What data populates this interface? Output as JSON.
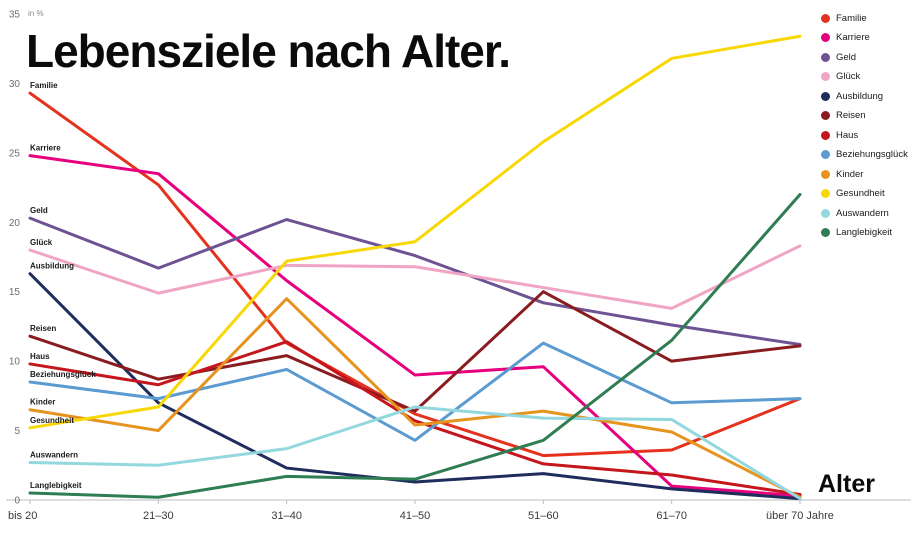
{
  "title": "Lebensziele nach Alter.",
  "chart_data": {
    "type": "line",
    "title": "Lebensziele nach Alter.",
    "xlabel": "Alter",
    "ylabel": "in %",
    "ylim": [
      0,
      35
    ],
    "yticks": [
      0,
      5,
      10,
      15,
      20,
      25,
      30,
      35
    ],
    "grid": false,
    "legend_position": "top-right",
    "categories": [
      "bis 20",
      "21–30",
      "31–40",
      "41–50",
      "51–60",
      "61–70",
      "über 70 Jahre"
    ],
    "series": [
      {
        "name": "Familie",
        "color": "#e5321e",
        "values": [
          29.3,
          22.7,
          11.3,
          6.2,
          3.2,
          3.6,
          7.3
        ]
      },
      {
        "name": "Karriere",
        "color": "#e6007e",
        "values": [
          24.8,
          23.5,
          15.8,
          9.0,
          9.6,
          1.0,
          0.3
        ]
      },
      {
        "name": "Geld",
        "color": "#6e5394",
        "values": [
          20.3,
          16.7,
          20.2,
          17.6,
          14.2,
          12.6,
          11.2
        ]
      },
      {
        "name": "Glück",
        "color": "#f1a5c5",
        "values": [
          18.0,
          14.9,
          16.9,
          16.8,
          15.3,
          13.8,
          18.3
        ]
      },
      {
        "name": "Ausbildung",
        "color": "#1e2d5c",
        "values": [
          16.3,
          7.0,
          2.3,
          1.3,
          1.9,
          0.8,
          0.1
        ]
      },
      {
        "name": "Reisen",
        "color": "#8a1c20",
        "values": [
          11.8,
          8.7,
          10.4,
          6.4,
          15.0,
          10.0,
          11.1
        ]
      },
      {
        "name": "Haus",
        "color": "#c4161c",
        "values": [
          9.8,
          8.3,
          11.4,
          5.7,
          2.6,
          1.8,
          0.4
        ]
      },
      {
        "name": "Beziehungsglück",
        "color": "#5b9bd1",
        "values": [
          8.5,
          7.3,
          9.4,
          4.3,
          11.3,
          7.0,
          7.3
        ]
      },
      {
        "name": "Kinder",
        "color": "#e6941e",
        "values": [
          6.5,
          5.0,
          14.5,
          5.4,
          6.4,
          4.9,
          0.2
        ]
      },
      {
        "name": "Gesundheit",
        "color": "#f8d804",
        "values": [
          5.2,
          6.7,
          17.2,
          18.6,
          25.8,
          31.8,
          33.4
        ]
      },
      {
        "name": "Auswandern",
        "color": "#92d8de",
        "values": [
          2.7,
          2.5,
          3.7,
          6.7,
          5.9,
          5.8,
          0.1
        ]
      },
      {
        "name": "Langlebigkeit",
        "color": "#2f7d53",
        "values": [
          0.5,
          0.2,
          1.7,
          1.5,
          4.3,
          11.5,
          22.0
        ]
      }
    ]
  }
}
